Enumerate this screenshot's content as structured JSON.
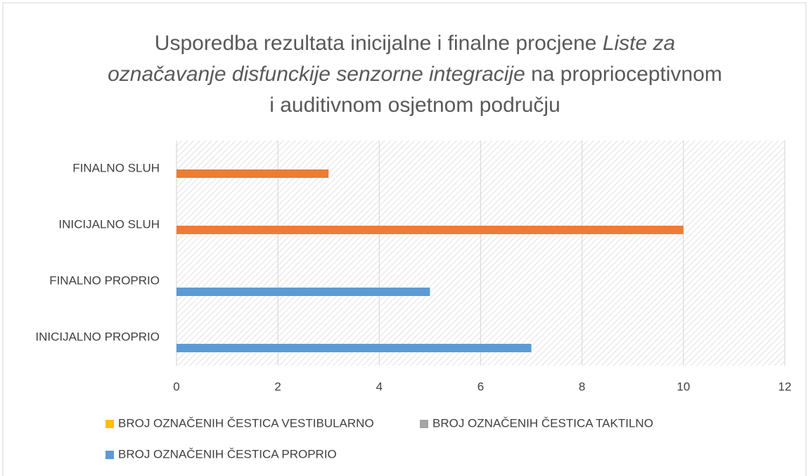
{
  "chart_data": {
    "type": "hbar",
    "title": [
      {
        "text": "Usporedba rezultata inicijalne i finalne procjene ",
        "italic": false
      },
      {
        "text": "Liste za označavanje disfunckije senzorne integracije",
        "italic": true
      },
      {
        "text": " na proprioceptivnom i auditivnom osjetnom području",
        "italic": false
      }
    ],
    "categories": [
      "INICIJALNO PROPRIO",
      "FINALNO PROPRIO",
      "INICIJALNO SLUH",
      "FINALNO SLUH"
    ],
    "series": [
      {
        "name": "BROJ OZNAČENIH ČESTICA VESTIBULARNO",
        "color": "#ffc000",
        "values": [
          null,
          null,
          null,
          null
        ]
      },
      {
        "name": "BROJ OZNAČENIH ČESTICA TAKTILNO",
        "color": "#a5a5a5",
        "values": [
          null,
          null,
          null,
          null
        ]
      },
      {
        "name": "BROJ OZNAČENIH ČESTICA PROPRIO",
        "color": "#5b9bd5",
        "values": [
          7,
          5,
          null,
          null
        ]
      },
      {
        "color": "#ed7d31",
        "values": [
          null,
          null,
          10,
          3
        ]
      }
    ],
    "xlim": [
      0,
      12
    ],
    "xticks": [
      0,
      2,
      4,
      6,
      8,
      10,
      12
    ],
    "grid": true
  }
}
